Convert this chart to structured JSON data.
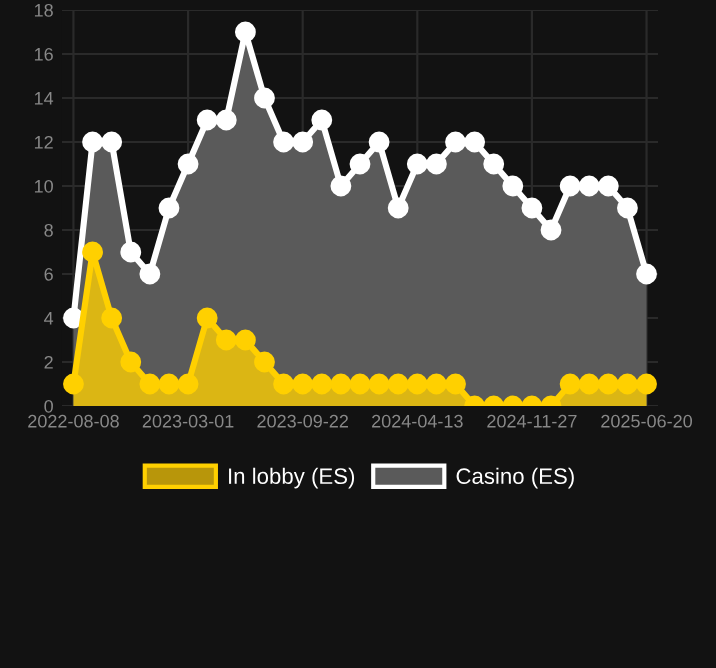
{
  "chart_data": {
    "type": "area",
    "categories": [
      "2022-08-08",
      null,
      null,
      null,
      null,
      null,
      "2023-03-01",
      null,
      null,
      null,
      null,
      null,
      "2023-09-22",
      null,
      null,
      null,
      null,
      null,
      "2024-04-13",
      null,
      null,
      null,
      null,
      null,
      "2024-11-27",
      null,
      null,
      null,
      null,
      null,
      "2025-06-20"
    ],
    "series": [
      {
        "name": "In lobby (ES)",
        "color": "#ffd000",
        "values": [
          1,
          7,
          4,
          2,
          1,
          1,
          1,
          4,
          3,
          3,
          2,
          1,
          1,
          1,
          1,
          1,
          1,
          1,
          1,
          1,
          1,
          0,
          0,
          0,
          0,
          0,
          1,
          1,
          1,
          1,
          1
        ]
      },
      {
        "name": "Casino (ES)",
        "color": "#ffffff",
        "values": [
          4,
          12,
          12,
          7,
          6,
          9,
          11,
          13,
          13,
          17,
          14,
          12,
          12,
          13,
          10,
          11,
          12,
          9,
          11,
          11,
          12,
          12,
          11,
          10,
          9,
          8,
          10,
          10,
          10,
          9,
          6
        ]
      }
    ],
    "ylim": [
      0,
      18
    ],
    "yticks": [
      0,
      2,
      4,
      6,
      8,
      10,
      12,
      14,
      16,
      18
    ],
    "grid": true,
    "legend": "bottom",
    "marker": "circle"
  }
}
